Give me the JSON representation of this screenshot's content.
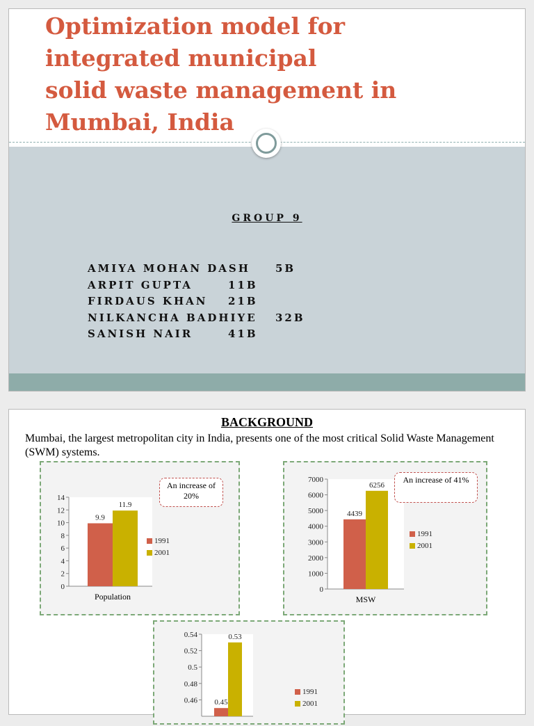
{
  "slide1": {
    "title_lines": [
      "Optimization model for",
      "integrated municipal",
      "solid waste management in",
      "Mumbai, India"
    ],
    "group": "GROUP 9",
    "members": [
      {
        "name": "AMIYA MOHAN DASH",
        "roll": "5B"
      },
      {
        "name": "ARPIT GUPTA",
        "roll": "11B"
      },
      {
        "name": "FIRDAUS KHAN",
        "roll": "21B"
      },
      {
        "name": "NILKANCHA BADHIYE",
        "roll": "32B"
      },
      {
        "name": "SANISH NAIR",
        "roll": "41B"
      }
    ],
    "colors": {
      "title": "#d45a3f",
      "band": "#c9d3d8",
      "bottom_band": "#8eaca9"
    }
  },
  "slide2": {
    "heading": "BACKGROUND",
    "text": "Mumbai, the largest metropolitan city in India, presents one of the most critical Solid Waste Management (SWM) systems.",
    "colors": {
      "series_1991": "#d0604a",
      "series_2001": "#c9b100",
      "box_border": "#7ca877"
    }
  },
  "chart_data": [
    {
      "type": "bar",
      "categories": [
        "Population"
      ],
      "series": [
        {
          "name": "1991",
          "values": [
            9.9
          ]
        },
        {
          "name": "2001",
          "values": [
            11.9
          ]
        }
      ],
      "ylim": [
        0,
        14
      ],
      "yticks": [
        "0",
        "2",
        "4",
        "6",
        "8",
        "10",
        "12",
        "14"
      ],
      "annotation": "An increase of 20%",
      "legend_position": "right"
    },
    {
      "type": "bar",
      "categories": [
        "MSW"
      ],
      "series": [
        {
          "name": "1991",
          "values": [
            4439
          ]
        },
        {
          "name": "2001",
          "values": [
            6256
          ]
        }
      ],
      "ylim": [
        0,
        7000
      ],
      "yticks": [
        "0",
        "1000",
        "2000",
        "3000",
        "4000",
        "5000",
        "6000",
        "7000"
      ],
      "annotation": "An increase of 41%",
      "legend_position": "right"
    },
    {
      "type": "bar",
      "categories": [
        ""
      ],
      "series": [
        {
          "name": "1991",
          "values": [
            0.45
          ]
        },
        {
          "name": "2001",
          "values": [
            0.53
          ]
        }
      ],
      "ylim": [
        0.44,
        0.54
      ],
      "yticks": [
        "0.46",
        "0.48",
        "0.5",
        "0.52",
        "0.54"
      ],
      "legend_position": "right"
    }
  ]
}
